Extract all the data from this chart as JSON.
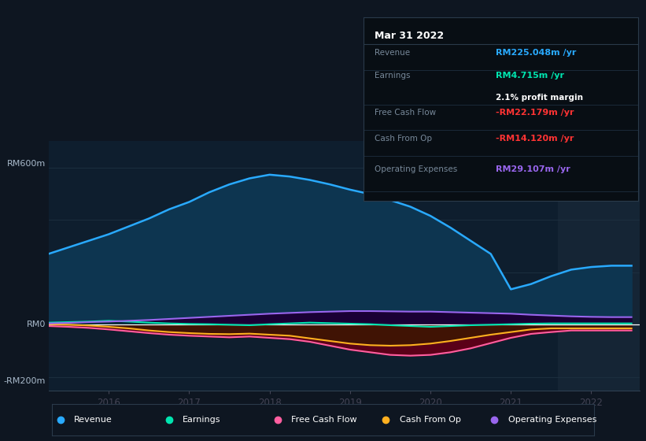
{
  "bg_color": "#0e1621",
  "plot_bg": "#0e1e2e",
  "highlight_bg": "#152535",
  "ylabel_top": "RM600m",
  "ylabel_zero": "RM0",
  "ylabel_bottom": "-RM200m",
  "ylim": [
    -250,
    700
  ],
  "xlim_start": 2015.25,
  "xlim_end": 2022.6,
  "xticks": [
    2016,
    2017,
    2018,
    2019,
    2020,
    2021,
    2022
  ],
  "revenue_color": "#29aaff",
  "revenue_fill": "#0d3550",
  "earnings_color": "#00e5b0",
  "earnings_fill": "#003333",
  "fcf_color": "#ff5fa0",
  "fcf_fill": "#5a0018",
  "cashop_color": "#ffb020",
  "cashop_fill": "#3a1800",
  "opex_color": "#9966ee",
  "opex_fill": "#1a0035",
  "revenue_label": "Revenue",
  "earnings_label": "Earnings",
  "fcf_label": "Free Cash Flow",
  "cashop_label": "Cash From Op",
  "opex_label": "Operating Expenses",
  "tooltip_date": "Mar 31 2022",
  "tooltip_revenue": "RM225.048m",
  "tooltip_earnings": "RM4.715m",
  "tooltip_margin": "2.1% profit margin",
  "tooltip_fcf": "-RM22.179m",
  "tooltip_cashop": "-RM14.120m",
  "tooltip_opex": "RM29.107m",
  "revenue_data_x": [
    2015.25,
    2015.5,
    2015.75,
    2016.0,
    2016.25,
    2016.5,
    2016.75,
    2017.0,
    2017.25,
    2017.5,
    2017.75,
    2018.0,
    2018.25,
    2018.5,
    2018.75,
    2019.0,
    2019.25,
    2019.5,
    2019.75,
    2020.0,
    2020.25,
    2020.5,
    2020.75,
    2021.0,
    2021.25,
    2021.5,
    2021.75,
    2022.0,
    2022.25,
    2022.5
  ],
  "revenue_data_y": [
    270,
    295,
    320,
    345,
    375,
    405,
    440,
    468,
    505,
    535,
    558,
    572,
    565,
    552,
    535,
    515,
    498,
    475,
    450,
    415,
    370,
    320,
    270,
    135,
    155,
    185,
    210,
    220,
    225,
    225
  ],
  "earnings_data_x": [
    2015.25,
    2015.5,
    2015.75,
    2016.0,
    2016.25,
    2016.5,
    2016.75,
    2017.0,
    2017.25,
    2017.5,
    2017.75,
    2018.0,
    2018.25,
    2018.5,
    2018.75,
    2019.0,
    2019.25,
    2019.5,
    2019.75,
    2020.0,
    2020.25,
    2020.5,
    2020.75,
    2021.0,
    2021.25,
    2021.5,
    2021.75,
    2022.0,
    2022.25,
    2022.5
  ],
  "earnings_data_y": [
    8,
    10,
    12,
    15,
    12,
    8,
    5,
    3,
    2,
    0,
    -2,
    2,
    5,
    8,
    6,
    4,
    2,
    -2,
    -5,
    -8,
    -5,
    -2,
    0,
    2,
    4,
    5,
    5,
    5,
    5,
    5
  ],
  "fcf_data_x": [
    2015.25,
    2015.5,
    2015.75,
    2016.0,
    2016.25,
    2016.5,
    2016.75,
    2017.0,
    2017.25,
    2017.5,
    2017.75,
    2018.0,
    2018.25,
    2018.5,
    2018.75,
    2019.0,
    2019.25,
    2019.5,
    2019.75,
    2020.0,
    2020.25,
    2020.5,
    2020.75,
    2021.0,
    2021.25,
    2021.5,
    2021.75,
    2022.0,
    2022.25,
    2022.5
  ],
  "fcf_data_y": [
    -5,
    -8,
    -12,
    -18,
    -25,
    -32,
    -38,
    -42,
    -45,
    -48,
    -45,
    -50,
    -55,
    -65,
    -80,
    -95,
    -105,
    -115,
    -118,
    -115,
    -105,
    -90,
    -70,
    -50,
    -35,
    -28,
    -22,
    -22,
    -22,
    -22
  ],
  "cashop_data_x": [
    2015.25,
    2015.5,
    2015.75,
    2016.0,
    2016.25,
    2016.5,
    2016.75,
    2017.0,
    2017.25,
    2017.5,
    2017.75,
    2018.0,
    2018.25,
    2018.5,
    2018.75,
    2019.0,
    2019.25,
    2019.5,
    2019.75,
    2020.0,
    2020.25,
    2020.5,
    2020.75,
    2021.0,
    2021.25,
    2021.5,
    2021.75,
    2022.0,
    2022.25,
    2022.5
  ],
  "cashop_data_y": [
    2,
    0,
    -3,
    -8,
    -14,
    -22,
    -28,
    -32,
    -35,
    -36,
    -34,
    -38,
    -42,
    -52,
    -62,
    -72,
    -78,
    -80,
    -78,
    -72,
    -62,
    -50,
    -38,
    -28,
    -18,
    -14,
    -14,
    -14,
    -14,
    -14
  ],
  "opex_data_x": [
    2015.25,
    2015.5,
    2015.75,
    2016.0,
    2016.25,
    2016.5,
    2016.75,
    2017.0,
    2017.25,
    2017.5,
    2017.75,
    2018.0,
    2018.25,
    2018.5,
    2018.75,
    2019.0,
    2019.25,
    2019.5,
    2019.75,
    2020.0,
    2020.25,
    2020.5,
    2020.75,
    2021.0,
    2021.25,
    2021.5,
    2021.75,
    2022.0,
    2022.25,
    2022.5
  ],
  "opex_data_y": [
    5,
    7,
    10,
    12,
    15,
    18,
    22,
    26,
    30,
    34,
    38,
    42,
    45,
    48,
    50,
    52,
    52,
    51,
    50,
    50,
    48,
    46,
    44,
    42,
    38,
    35,
    32,
    30,
    29,
    29
  ],
  "highlight_x_start": 2021.58,
  "highlight_x_end": 2022.6,
  "gridline_y": [
    600,
    400,
    200,
    0,
    -200
  ],
  "gridline_color": "#1e3040"
}
